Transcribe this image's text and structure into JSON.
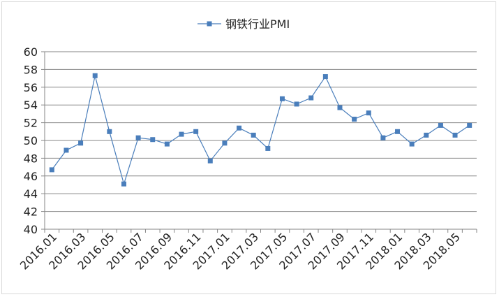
{
  "chart_data": {
    "type": "line",
    "legend_position": "top",
    "grid": true,
    "ylim": [
      40,
      60
    ],
    "yticks": [
      40,
      42,
      44,
      46,
      48,
      50,
      52,
      54,
      56,
      58,
      60
    ],
    "xtick_labels": [
      "2016.01",
      "2016.03",
      "2016.05",
      "2016.07",
      "2016.09",
      "2016.11",
      "2017.01",
      "2017.03",
      "2017.05",
      "2017.07",
      "2017.09",
      "2017.11",
      "2018.01",
      "2018.03",
      "2018.05"
    ],
    "categories": [
      "2016.01",
      "2016.02",
      "2016.03",
      "2016.04",
      "2016.05",
      "2016.06",
      "2016.07",
      "2016.08",
      "2016.09",
      "2016.10",
      "2016.11",
      "2016.12",
      "2017.01",
      "2017.02",
      "2017.03",
      "2017.04",
      "2017.05",
      "2017.06",
      "2017.07",
      "2017.08",
      "2017.09",
      "2017.10",
      "2017.11",
      "2017.12",
      "2018.01",
      "2018.02",
      "2018.03",
      "2018.04",
      "2018.05",
      "2018.06"
    ],
    "series": [
      {
        "name": "钢铁行业PMI",
        "color": "#4a7ebb",
        "values": [
          46.7,
          48.9,
          49.7,
          57.3,
          51.0,
          45.1,
          50.3,
          50.1,
          49.6,
          50.7,
          51.0,
          47.7,
          49.7,
          51.4,
          50.6,
          49.1,
          54.7,
          54.1,
          54.8,
          57.2,
          53.7,
          52.4,
          53.1,
          50.3,
          51.0,
          49.6,
          50.6,
          51.7,
          50.6,
          51.7
        ]
      }
    ]
  }
}
